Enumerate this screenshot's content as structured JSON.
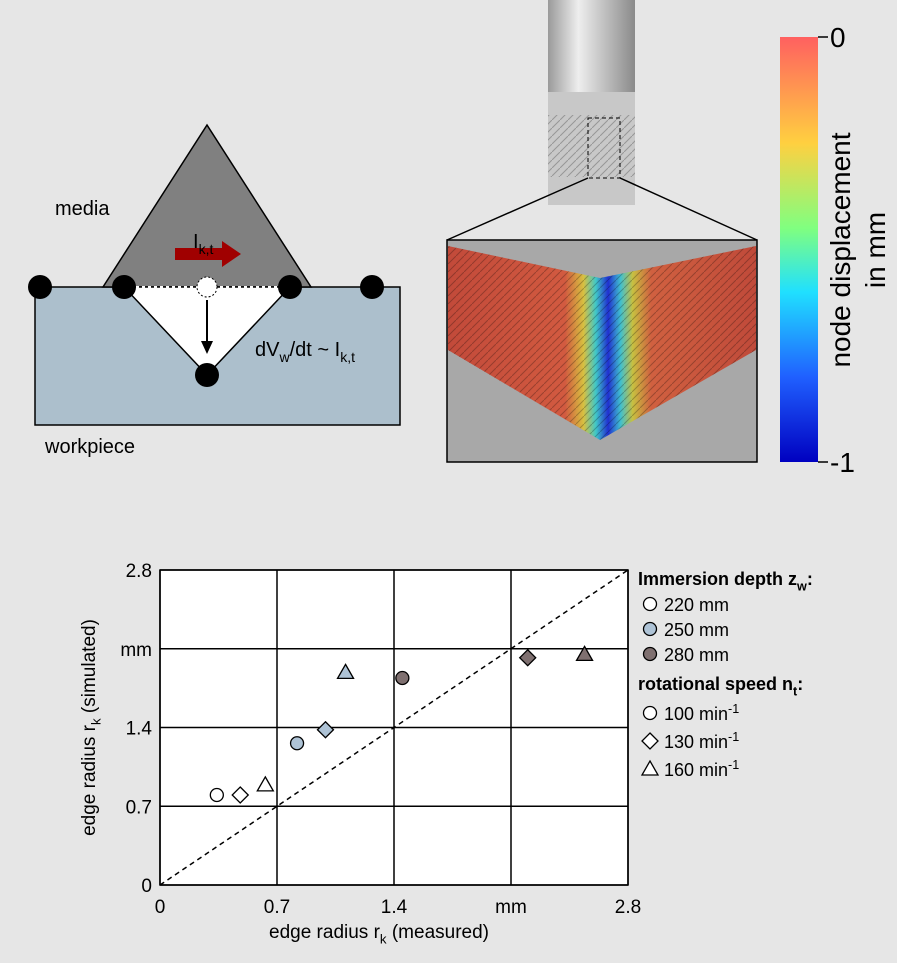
{
  "diagram": {
    "media": "media",
    "flow": {
      "main": "I",
      "sub": "k,t"
    },
    "removal": {
      "p1": "dV",
      "sub1": "w",
      "p2": "/dt ~ I",
      "sub2": "k,t"
    },
    "workpiece": "workpiece"
  },
  "colorbar": {
    "lim": [
      -1,
      0
    ],
    "ticks": [
      0,
      -1
    ],
    "label": [
      "node displacement",
      "in mm"
    ]
  },
  "chart_data": {
    "type": "scatter",
    "x_label": {
      "main": "edge radius r",
      "sub": "k",
      "after": " (measured)"
    },
    "y_label": {
      "main": "edge radius r",
      "sub": "k",
      "after": " (simulated)"
    },
    "xlim": [
      0,
      2.8
    ],
    "ylim": [
      0,
      2.8
    ],
    "xticks": [
      0,
      0.7,
      1.4,
      {
        "value": 2.1,
        "label": "mm"
      },
      2.8
    ],
    "yticks": [
      0,
      0.7,
      1.4,
      {
        "value": 2.1,
        "label": "mm"
      },
      2.8
    ],
    "grid": true,
    "diagonal": true,
    "legend_title": {
      "main": "Immersion depth z",
      "sub": "w",
      "after": ":"
    },
    "series": [
      {
        "name": "220 mm",
        "color": "#ffffff",
        "x": [
          0.34,
          0.48,
          0.63
        ],
        "values": [
          0.8,
          0.8,
          0.89
        ]
      },
      {
        "name": "250 mm",
        "color": "#aec3d6",
        "x": [
          0.82,
          0.99,
          1.11
        ],
        "values": [
          1.26,
          1.38,
          1.89
        ]
      },
      {
        "name": "280 mm",
        "color": "#7f7070",
        "x": [
          1.45,
          2.2,
          2.54
        ],
        "values": [
          1.84,
          2.02,
          2.05
        ]
      }
    ],
    "marker_legend": {
      "title": {
        "main": "rotational speed n",
        "sub": "t",
        "after": ":"
      },
      "entries": [
        {
          "marker": "circle",
          "name": {
            "main": "100 min",
            "sup": "-1"
          }
        },
        {
          "marker": "diamond",
          "name": {
            "main": "130 min",
            "sup": "-1"
          }
        },
        {
          "marker": "triangle",
          "name": {
            "main": "160 min",
            "sup": "-1"
          }
        }
      ]
    }
  }
}
